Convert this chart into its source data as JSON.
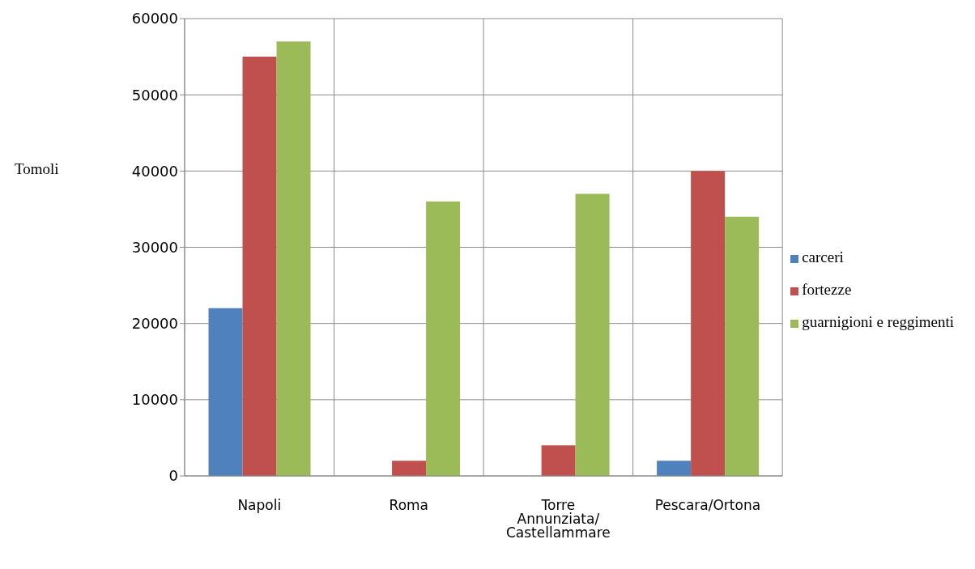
{
  "chart_data": {
    "type": "bar",
    "ylabel": "Tomoli",
    "categories": [
      "Napoli",
      "Roma",
      "Torre Annunziata/ Castellammare",
      "Pescara/Ortona"
    ],
    "series": [
      {
        "name": "carceri",
        "color": "#4f81bd",
        "values": [
          22000,
          0,
          0,
          2000
        ]
      },
      {
        "name": "fortezze",
        "color": "#c0504d",
        "values": [
          55000,
          2000,
          4000,
          40000
        ]
      },
      {
        "name": "guarnigioni  e reggimenti",
        "color": "#9bbb59",
        "values": [
          57000,
          36000,
          37000,
          34000
        ]
      }
    ],
    "ylim": [
      0,
      60000
    ],
    "yticks": [
      0,
      10000,
      20000,
      30000,
      40000,
      50000,
      60000
    ],
    "grid": true,
    "legend": "right"
  }
}
